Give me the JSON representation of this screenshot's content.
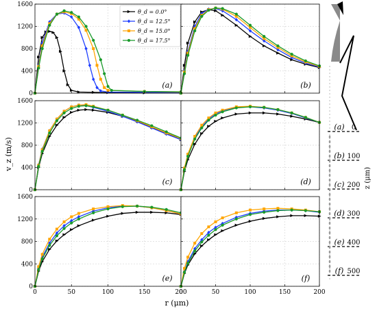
{
  "chart_data": {
    "type": "line",
    "ylabel": "v_z (m/s)",
    "xlabel": "r (μm)",
    "xlim": [
      0,
      200
    ],
    "ylim": [
      0,
      1600
    ],
    "x_ticks": [
      "0",
      "50",
      "100",
      "150",
      "200"
    ],
    "y_ticks": [
      "0",
      "400",
      "800",
      "1200",
      "1600"
    ],
    "grid": true,
    "legend_position": "top-right of panel (a)",
    "colors": [
      "#000000",
      "#1f3fff",
      "#ffa500",
      "#1a9a2a"
    ],
    "legend_labels": [
      "θ_d = 0.0°",
      "θ_d = 12.5°",
      "θ_d = 15.0°",
      "θ_d = 17.5°"
    ],
    "panels": [
      {
        "label": "(a)",
        "series": [
          {
            "name": "θ_d = 0.0°",
            "x": [
              0,
              5,
              10,
              15,
              20,
              25,
              30,
              35,
              40,
              45,
              50,
              60,
              80,
              100,
              150,
              200
            ],
            "y": [
              0,
              650,
              1000,
              1100,
              1110,
              1090,
              1000,
              750,
              400,
              150,
              50,
              20,
              15,
              10,
              5,
              5
            ]
          },
          {
            "name": "θ_d = 12.5°",
            "x": [
              0,
              5,
              10,
              20,
              30,
              40,
              50,
              60,
              70,
              75,
              80,
              85,
              90,
              100,
              150,
              200
            ],
            "y": [
              0,
              500,
              900,
              1280,
              1420,
              1440,
              1370,
              1180,
              800,
              500,
              250,
              100,
              40,
              20,
              15,
              10
            ]
          },
          {
            "name": "θ_d = 15.0°",
            "x": [
              0,
              5,
              10,
              20,
              30,
              40,
              50,
              60,
              70,
              80,
              85,
              90,
              95,
              100,
              150,
              200
            ],
            "y": [
              0,
              480,
              850,
              1250,
              1420,
              1460,
              1430,
              1330,
              1130,
              800,
              500,
              250,
              100,
              50,
              30,
              20
            ]
          },
          {
            "name": "θ_d = 17.5°",
            "x": [
              0,
              5,
              10,
              20,
              30,
              40,
              50,
              60,
              70,
              80,
              90,
              95,
              100,
              105,
              150,
              200
            ],
            "y": [
              0,
              450,
              800,
              1220,
              1420,
              1480,
              1450,
              1370,
              1200,
              950,
              600,
              350,
              120,
              50,
              30,
              25
            ]
          }
        ]
      },
      {
        "label": "(b)",
        "series": [
          {
            "name": "θ_d = 0.0°",
            "x": [
              0,
              5,
              10,
              20,
              30,
              40,
              50,
              60,
              80,
              100,
              120,
              140,
              160,
              180,
              200
            ],
            "y": [
              0,
              500,
              900,
              1280,
              1460,
              1500,
              1480,
              1400,
              1220,
              1020,
              850,
              720,
              600,
              520,
              460
            ]
          },
          {
            "name": "θ_d = 12.5°",
            "x": [
              0,
              5,
              10,
              20,
              30,
              40,
              50,
              60,
              80,
              100,
              120,
              140,
              160,
              180,
              200
            ],
            "y": [
              0,
              400,
              750,
              1200,
              1430,
              1510,
              1520,
              1480,
              1320,
              1120,
              940,
              780,
              640,
              540,
              470
            ]
          },
          {
            "name": "θ_d = 15.0°",
            "x": [
              0,
              5,
              10,
              20,
              30,
              40,
              50,
              60,
              80,
              100,
              120,
              140,
              160,
              180,
              200
            ],
            "y": [
              0,
              380,
              720,
              1160,
              1400,
              1500,
              1530,
              1510,
              1380,
              1180,
              980,
              820,
              670,
              560,
              480
            ]
          },
          {
            "name": "θ_d = 17.5°",
            "x": [
              0,
              5,
              10,
              20,
              30,
              40,
              50,
              60,
              80,
              100,
              120,
              140,
              160,
              180,
              200
            ],
            "y": [
              0,
              350,
              680,
              1120,
              1380,
              1490,
              1530,
              1520,
              1420,
              1220,
              1020,
              850,
              700,
              580,
              490
            ]
          }
        ]
      },
      {
        "label": "(c)",
        "series": [
          {
            "name": "θ_d = 0.0°",
            "x": [
              0,
              5,
              10,
              20,
              30,
              40,
              50,
              60,
              70,
              80,
              100,
              120,
              140,
              160,
              180,
              200
            ],
            "y": [
              0,
              400,
              650,
              960,
              1160,
              1300,
              1390,
              1430,
              1440,
              1430,
              1390,
              1320,
              1230,
              1120,
              1010,
              900
            ]
          },
          {
            "name": "θ_d = 12.5°",
            "x": [
              0,
              5,
              10,
              20,
              30,
              40,
              50,
              60,
              70,
              80,
              100,
              120,
              140,
              160,
              180,
              200
            ],
            "y": [
              0,
              450,
              730,
              1060,
              1270,
              1410,
              1490,
              1520,
              1510,
              1480,
              1410,
              1320,
              1220,
              1110,
              1000,
              900
            ]
          },
          {
            "name": "θ_d = 15.0°",
            "x": [
              0,
              5,
              10,
              20,
              30,
              40,
              50,
              60,
              70,
              80,
              100,
              120,
              140,
              160,
              180,
              200
            ],
            "y": [
              0,
              440,
              720,
              1060,
              1270,
              1410,
              1490,
              1520,
              1530,
              1500,
              1430,
              1340,
              1240,
              1130,
              1020,
              920
            ]
          },
          {
            "name": "θ_d = 17.5°",
            "x": [
              0,
              5,
              10,
              20,
              30,
              40,
              50,
              60,
              70,
              80,
              100,
              120,
              140,
              160,
              180,
              200
            ],
            "y": [
              0,
              420,
              690,
              1020,
              1240,
              1380,
              1460,
              1500,
              1510,
              1490,
              1430,
              1340,
              1250,
              1150,
              1040,
              930
            ]
          }
        ]
      },
      {
        "label": "(d)",
        "series": [
          {
            "name": "θ_d = 0.0°",
            "x": [
              0,
              5,
              10,
              20,
              30,
              40,
              50,
              60,
              80,
              100,
              120,
              140,
              160,
              180,
              200
            ],
            "y": [
              0,
              330,
              540,
              820,
              1010,
              1140,
              1230,
              1290,
              1360,
              1380,
              1380,
              1360,
              1320,
              1270,
              1210
            ]
          },
          {
            "name": "θ_d = 12.5°",
            "x": [
              0,
              5,
              10,
              20,
              30,
              40,
              50,
              60,
              80,
              100,
              120,
              140,
              160,
              180,
              200
            ],
            "y": [
              0,
              380,
              620,
              930,
              1130,
              1270,
              1360,
              1420,
              1480,
              1490,
              1470,
              1430,
              1370,
              1290,
              1210
            ]
          },
          {
            "name": "θ_d = 15.0°",
            "x": [
              0,
              5,
              10,
              20,
              30,
              40,
              50,
              60,
              80,
              100,
              120,
              140,
              160,
              180,
              200
            ],
            "y": [
              0,
              390,
              640,
              960,
              1160,
              1290,
              1380,
              1430,
              1490,
              1500,
              1480,
              1440,
              1380,
              1300,
              1210
            ]
          },
          {
            "name": "θ_d = 17.5°",
            "x": [
              0,
              5,
              10,
              20,
              30,
              40,
              50,
              60,
              80,
              100,
              120,
              140,
              160,
              180,
              200
            ],
            "y": [
              0,
              360,
              600,
              910,
              1110,
              1250,
              1340,
              1400,
              1470,
              1490,
              1480,
              1440,
              1380,
              1300,
              1210
            ]
          }
        ]
      },
      {
        "label": "(e)",
        "series": [
          {
            "name": "θ_d = 0.0°",
            "x": [
              0,
              5,
              10,
              20,
              30,
              40,
              50,
              60,
              80,
              100,
              120,
              140,
              160,
              180,
              200
            ],
            "y": [
              0,
              270,
              440,
              660,
              810,
              920,
              1010,
              1080,
              1180,
              1250,
              1300,
              1320,
              1320,
              1310,
              1280
            ]
          },
          {
            "name": "θ_d = 12.5°",
            "x": [
              0,
              5,
              10,
              20,
              30,
              40,
              50,
              60,
              80,
              100,
              120,
              140,
              160,
              180,
              200
            ],
            "y": [
              0,
              320,
              520,
              770,
              950,
              1080,
              1170,
              1240,
              1340,
              1400,
              1430,
              1430,
              1400,
              1350,
              1290
            ]
          },
          {
            "name": "θ_d = 15.0°",
            "x": [
              0,
              5,
              10,
              20,
              30,
              40,
              50,
              60,
              80,
              100,
              120,
              140,
              160,
              180,
              200
            ],
            "y": [
              0,
              350,
              570,
              840,
              1020,
              1150,
              1240,
              1300,
              1380,
              1420,
              1440,
              1430,
              1400,
              1350,
              1290
            ]
          },
          {
            "name": "θ_d = 17.5°",
            "x": [
              0,
              5,
              10,
              20,
              30,
              40,
              50,
              60,
              80,
              100,
              120,
              140,
              160,
              180,
              200
            ],
            "y": [
              0,
              300,
              490,
              730,
              900,
              1030,
              1130,
              1200,
              1310,
              1380,
              1420,
              1430,
              1410,
              1370,
              1310
            ]
          }
        ]
      },
      {
        "label": "(f)",
        "series": [
          {
            "name": "θ_d = 0.0°",
            "x": [
              0,
              5,
              10,
              20,
              30,
              40,
              50,
              60,
              80,
              100,
              120,
              140,
              160,
              180,
              200
            ],
            "y": [
              0,
              230,
              380,
              580,
              720,
              830,
              920,
              990,
              1090,
              1160,
              1210,
              1240,
              1260,
              1260,
              1250
            ]
          },
          {
            "name": "θ_d = 12.5°",
            "x": [
              0,
              5,
              10,
              20,
              30,
              40,
              50,
              60,
              80,
              100,
              120,
              140,
              160,
              180,
              200
            ],
            "y": [
              0,
              270,
              440,
              670,
              830,
              960,
              1050,
              1120,
              1230,
              1300,
              1340,
              1360,
              1360,
              1350,
              1320
            ]
          },
          {
            "name": "θ_d = 15.0°",
            "x": [
              0,
              5,
              10,
              20,
              30,
              40,
              50,
              60,
              80,
              100,
              120,
              140,
              160,
              180,
              200
            ],
            "y": [
              0,
              320,
              520,
              770,
              940,
              1060,
              1150,
              1220,
              1310,
              1360,
              1380,
              1390,
              1380,
              1360,
              1330
            ]
          },
          {
            "name": "θ_d = 17.5°",
            "x": [
              0,
              5,
              10,
              20,
              30,
              40,
              50,
              60,
              80,
              100,
              120,
              140,
              160,
              180,
              200
            ],
            "y": [
              0,
              250,
              410,
              630,
              790,
              910,
              1010,
              1090,
              1200,
              1280,
              1320,
              1350,
              1360,
              1350,
              1330
            ]
          }
        ]
      }
    ]
  },
  "side_diagram": {
    "zlabel": "z (μm)",
    "stations": [
      {
        "label": "(a)",
        "value": "0"
      },
      {
        "label": "(b)",
        "value": "100"
      },
      {
        "label": "(c)",
        "value": "200"
      },
      {
        "label": "(d)",
        "value": "300"
      },
      {
        "label": "(e)",
        "value": "400"
      },
      {
        "label": "(f)",
        "value": "500"
      }
    ]
  }
}
